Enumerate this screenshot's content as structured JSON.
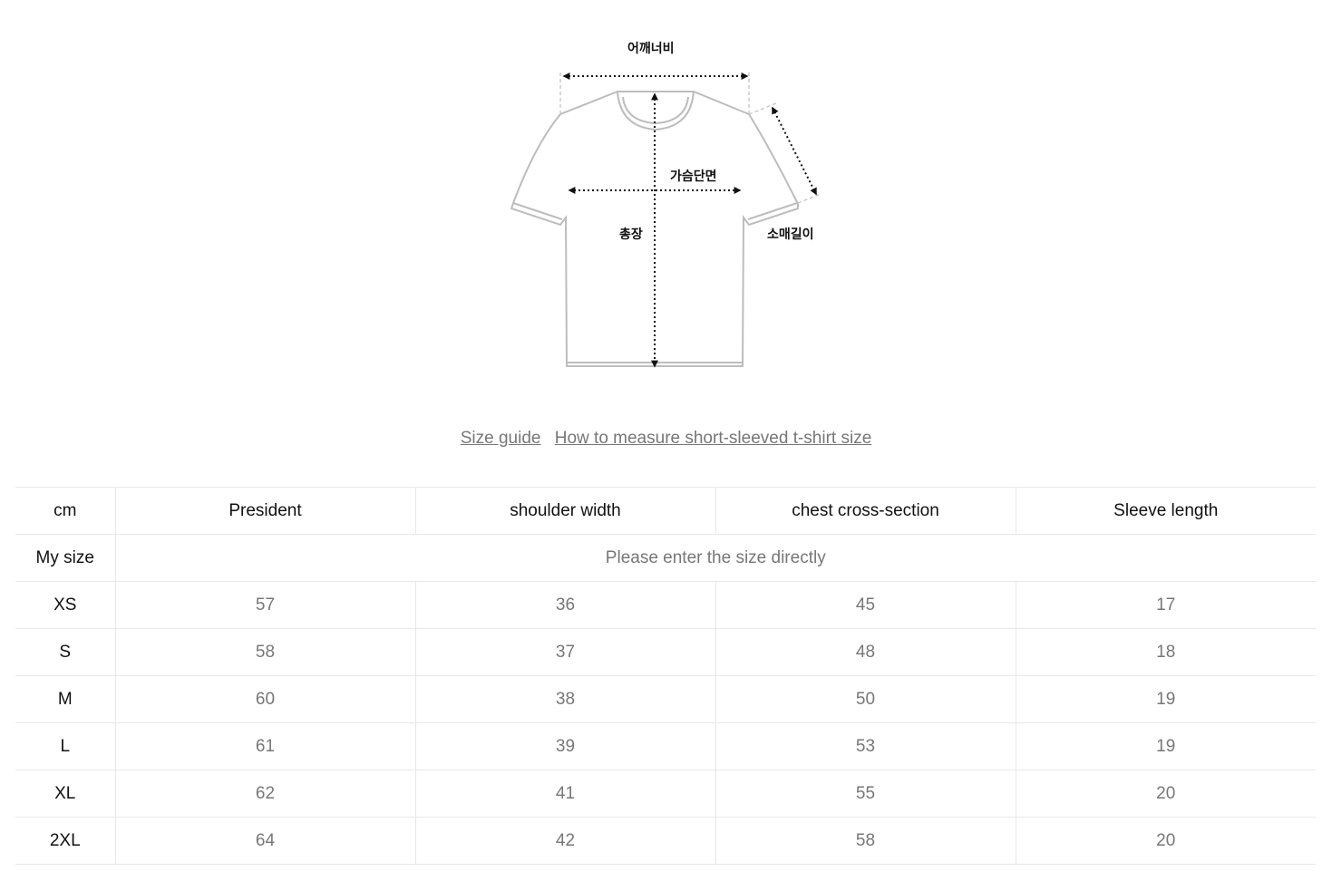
{
  "diagram": {
    "labels": {
      "shoulder": "어깨너비",
      "chest": "가슴단면",
      "length": "총장",
      "sleeve": "소매길이"
    },
    "line_color": "#bdbdbd",
    "arrow_color": "#111111"
  },
  "links": {
    "size_guide": "Size guide",
    "how_to_measure": "How to measure short-sleeved t-shirt size"
  },
  "table": {
    "headers": [
      "cm",
      "President",
      "shoulder width",
      "chest cross-section",
      "Sleeve length"
    ],
    "my_size": {
      "label": "My size",
      "placeholder": "Please enter the size directly"
    },
    "rows": [
      {
        "size": "XS",
        "values": [
          "57",
          "36",
          "45",
          "17"
        ]
      },
      {
        "size": "S",
        "values": [
          "58",
          "37",
          "48",
          "18"
        ]
      },
      {
        "size": "M",
        "values": [
          "60",
          "38",
          "50",
          "19"
        ]
      },
      {
        "size": "L",
        "values": [
          "61",
          "39",
          "53",
          "19"
        ]
      },
      {
        "size": "XL",
        "values": [
          "62",
          "41",
          "55",
          "20"
        ]
      },
      {
        "size": "2XL",
        "values": [
          "64",
          "42",
          "58",
          "20"
        ]
      }
    ]
  }
}
